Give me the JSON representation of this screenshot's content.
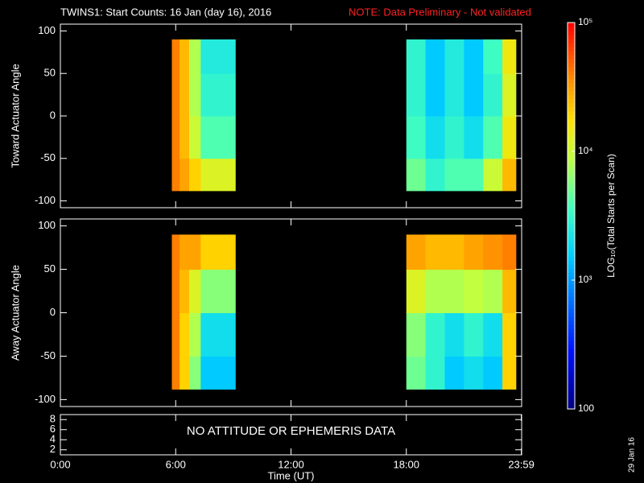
{
  "header": {
    "title": "TWINS1: Start Counts: 16 Jan (day  16), 2016",
    "note": "NOTE: Data Preliminary - Not validated",
    "date": "29 Jan 16"
  },
  "colorbar": {
    "label": "LOG₁₀(Total Starts per Scan)",
    "lim": [
      100,
      100000
    ],
    "log": true,
    "ticks": [
      100,
      {
        "value": 1000,
        "label": "10³"
      },
      {
        "value": 10000,
        "label": "10⁴"
      },
      {
        "value": 100000,
        "label": "10⁵"
      }
    ],
    "colorscale": [
      [
        0,
        "#000080"
      ],
      [
        0.15,
        "#0010ff"
      ],
      [
        0.3,
        "#0080ff"
      ],
      [
        0.4,
        "#00d0ff"
      ],
      [
        0.52,
        "#40ffc0"
      ],
      [
        0.65,
        "#c0ff40"
      ],
      [
        0.75,
        "#ffe000"
      ],
      [
        0.85,
        "#ff9000"
      ],
      [
        0.95,
        "#ff3000"
      ],
      [
        1,
        "#ff0000"
      ]
    ]
  },
  "chart_data": [
    {
      "type": "heatmap",
      "ylabel": "Toward Actuator Angle",
      "xlim": [
        0,
        24
      ],
      "xticks": [
        6,
        12,
        18
      ],
      "ylim": [
        -108,
        108
      ],
      "yticks": [
        -100,
        -50,
        0,
        50,
        100
      ],
      "xbins": [
        5.8,
        6.2,
        6.7,
        7.3,
        9.1,
        18.0,
        19.0,
        20.0,
        21.0,
        22.0,
        23.0,
        23.7
      ],
      "ybins": [
        -88,
        -50,
        0,
        50,
        90
      ],
      "values": [
        [
          40000,
          30000,
          20000,
          12000,
          null,
          5000,
          3000,
          4000,
          4000,
          10000,
          25000
        ],
        [
          40000,
          25000,
          10000,
          4000,
          null,
          3500,
          2000,
          3000,
          2000,
          4000,
          15000
        ],
        [
          40000,
          25000,
          8000,
          3000,
          null,
          3000,
          1500,
          2500,
          1500,
          3000,
          12000
        ],
        [
          40000,
          25000,
          8000,
          2500,
          null,
          3000,
          1500,
          2500,
          1500,
          3500,
          15000
        ]
      ]
    },
    {
      "type": "heatmap",
      "ylabel": "Away Actuator Angle",
      "xlim": [
        0,
        24
      ],
      "xticks": [
        6,
        12,
        18
      ],
      "ylim": [
        -108,
        108
      ],
      "yticks": [
        -100,
        -50,
        0,
        50,
        100
      ],
      "xbins": [
        5.8,
        6.2,
        6.7,
        7.3,
        9.1,
        18.0,
        19.0,
        20.0,
        21.0,
        22.0,
        23.0,
        23.7
      ],
      "ybins": [
        -88,
        -50,
        0,
        50,
        90
      ],
      "values": [
        [
          40000,
          20000,
          6000,
          1500,
          null,
          5000,
          3000,
          1500,
          2000,
          1500,
          20000
        ],
        [
          40000,
          20000,
          8000,
          2000,
          null,
          6000,
          3000,
          2000,
          3000,
          2000,
          20000
        ],
        [
          40000,
          25000,
          12000,
          6000,
          null,
          12000,
          8000,
          8000,
          9000,
          8000,
          25000
        ],
        [
          40000,
          30000,
          30000,
          20000,
          null,
          30000,
          25000,
          25000,
          30000,
          35000,
          40000
        ]
      ]
    },
    {
      "type": "annotation",
      "annotation": "NO ATTITUDE OR EPHEMERIS DATA",
      "xlabel": "Time (UT)",
      "xlim": [
        0,
        24
      ],
      "ylim": [
        1,
        9
      ],
      "yticks": [
        2,
        4,
        6,
        8
      ],
      "xticks": [
        {
          "value": 0,
          "label": "0:00"
        },
        {
          "value": 6,
          "label": "6:00"
        },
        {
          "value": 12,
          "label": "12:00"
        },
        {
          "value": 18,
          "label": "18:00"
        },
        {
          "value": 23.983,
          "label": "23:59"
        }
      ]
    }
  ]
}
